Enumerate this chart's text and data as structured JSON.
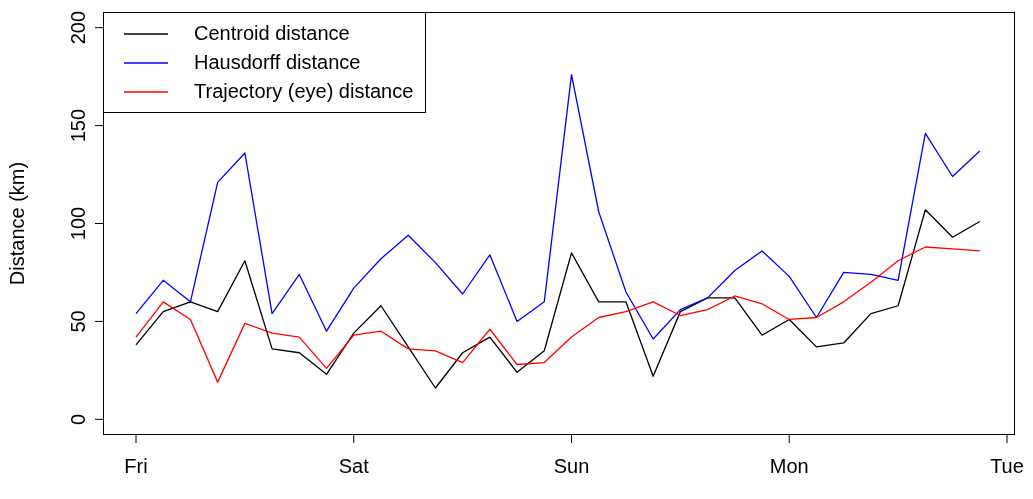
{
  "chart_data": {
    "type": "line",
    "ylabel": "Distance (km)",
    "categories": [
      "Fri",
      null,
      null,
      null,
      null,
      null,
      null,
      null,
      "Sat",
      null,
      null,
      null,
      null,
      null,
      null,
      null,
      "Sun",
      null,
      null,
      null,
      null,
      null,
      null,
      null,
      "Mon",
      null,
      null,
      null,
      null,
      null,
      null,
      null,
      "Tue"
    ],
    "ylim": [
      -8,
      208
    ],
    "yticks": [
      0,
      50,
      100,
      150,
      200
    ],
    "legend": "top left",
    "marker": "none",
    "line_style": "solid",
    "series": [
      {
        "name": "Centroid distance",
        "color": "#000000",
        "values": [
          38,
          55,
          60,
          55,
          81,
          36,
          34,
          23,
          44,
          58,
          37,
          16,
          34,
          42,
          24,
          35,
          85,
          60,
          60,
          22,
          55,
          62,
          62,
          43,
          51,
          37,
          39,
          54,
          58,
          107,
          93,
          101,
          null
        ]
      },
      {
        "name": "Hausdorff distance",
        "color": "#0000ff",
        "values": [
          54,
          71,
          60,
          121,
          136,
          54,
          74,
          45,
          67,
          82,
          94,
          80,
          64,
          84,
          50,
          60,
          176,
          106,
          65,
          41,
          56,
          62,
          76,
          86,
          73,
          52,
          75,
          74,
          71,
          146,
          124,
          137,
          null
        ]
      },
      {
        "name": "Trajectory (eye) distance",
        "color": "#ff0000",
        "values": [
          42,
          60,
          51,
          19,
          49,
          44,
          42,
          26,
          43,
          45,
          36,
          35,
          29,
          46,
          28,
          29,
          42,
          52,
          55,
          60,
          53,
          56,
          63,
          59,
          51,
          52,
          60,
          70,
          81,
          88,
          87,
          86,
          null
        ]
      }
    ]
  }
}
